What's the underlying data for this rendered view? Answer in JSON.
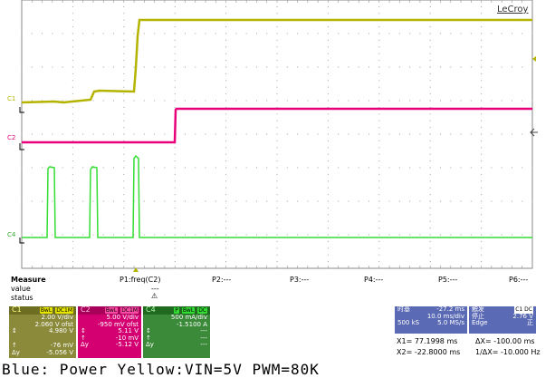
{
  "brand": "LeCroy",
  "colors": {
    "c1": "#b4b400",
    "c2": "#e8007a",
    "c4": "#33dd33",
    "trigger": "#b4b400",
    "timebase_bg": "#5a6ab4"
  },
  "traces": {
    "c1_label": "C1",
    "c2_label": "C2",
    "c4_label": "C4"
  },
  "measure": {
    "title": "Measure",
    "row_value": "value",
    "row_status": "status",
    "params": [
      {
        "label": "P1:freq(C2)",
        "value": "---"
      },
      {
        "label": "P2:---"
      },
      {
        "label": "P3:---"
      },
      {
        "label": "P4:---"
      },
      {
        "label": "P5:---"
      },
      {
        "label": "P6:---"
      }
    ],
    "status_icon": "warning-icon"
  },
  "channels": {
    "c1": {
      "name": "C1",
      "tags": [
        "BwL",
        "DC1M"
      ],
      "vdiv": "2.00 V/div",
      "ofst": "2.060 V ofst",
      "rows": [
        [
          "↕",
          "4.980 V"
        ],
        [
          "↑",
          "-76 mV"
        ],
        [
          "Δy",
          "-5.056 V"
        ]
      ]
    },
    "c2": {
      "name": "C2",
      "tags": [
        "BwL",
        "DC1M"
      ],
      "vdiv": "5.00 V/div",
      "ofst": "-950 mV ofst",
      "rows": [
        [
          "↕",
          "5.11 V"
        ],
        [
          "↑",
          "-10 mV"
        ],
        [
          "Δy",
          "-5.12 V"
        ]
      ]
    },
    "c4": {
      "name": "C4",
      "tags": [
        "P",
        "BwL",
        "DC"
      ],
      "vdiv": "500 mA/div",
      "ofst": "-1.5100 A",
      "rows": [
        [
          "↕",
          "---"
        ],
        [
          "↑",
          "---"
        ],
        [
          "Δy",
          "---"
        ]
      ]
    }
  },
  "timebase": {
    "label": "时基",
    "delay": "-27.2 ms",
    "tdiv": "10.0 ms/div",
    "samples": "500 kS",
    "rate": "5.0 MS/s"
  },
  "trigger": {
    "label": "触发",
    "source": "C1 DC",
    "mode": "停止",
    "level": "2.76 V",
    "type": "Edge",
    "slope": "正"
  },
  "cursors": {
    "x1": "X1=  77.1998 ms",
    "dx": "ΔX=  -100.00 ms",
    "x2": "X2=  -22.8000 ms",
    "inv_dx": "1/ΔX=  -10.000 Hz"
  },
  "caption": "Blue: Power  Yellow:VIN=5V PWM=80K"
}
